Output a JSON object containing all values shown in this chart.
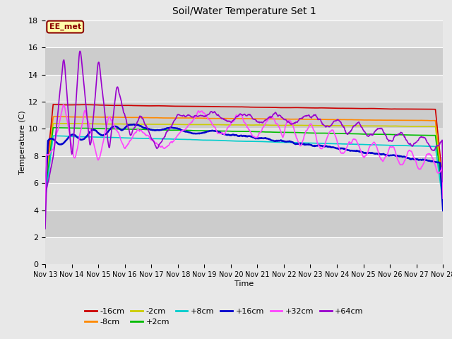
{
  "title": "Soil/Water Temperature Set 1",
  "xlabel": "Time",
  "ylabel": "Temperature (C)",
  "xlim": [
    0,
    15
  ],
  "ylim": [
    0,
    18
  ],
  "yticks": [
    0,
    2,
    4,
    6,
    8,
    10,
    12,
    14,
    16,
    18
  ],
  "xtick_labels": [
    "Nov 13",
    "Nov 14",
    "Nov 15",
    "Nov 16",
    "Nov 17",
    "Nov 18",
    "Nov 19",
    "Nov 20",
    "Nov 21",
    "Nov 22",
    "Nov 23",
    "Nov 24",
    "Nov 25",
    "Nov 26",
    "Nov 27",
    "Nov 28"
  ],
  "annotation": "EE_met",
  "fig_bg": "#e8e8e8",
  "plot_bg_light": "#e0e0e0",
  "plot_bg_dark": "#cccccc",
  "series": {
    "-16cm": {
      "color": "#cc0000",
      "lw": 1.2
    },
    "-8cm": {
      "color": "#ff8800",
      "lw": 1.2
    },
    "-2cm": {
      "color": "#cccc00",
      "lw": 1.2
    },
    "+2cm": {
      "color": "#00bb00",
      "lw": 1.2
    },
    "+8cm": {
      "color": "#00cccc",
      "lw": 1.2
    },
    "+16cm": {
      "color": "#0000cc",
      "lw": 1.8
    },
    "+32cm": {
      "color": "#ff44ff",
      "lw": 1.2
    },
    "+64cm": {
      "color": "#9900cc",
      "lw": 1.2
    }
  },
  "legend_order": [
    "-16cm",
    "-8cm",
    "-2cm",
    "+2cm",
    "+8cm",
    "+16cm",
    "+32cm",
    "+64cm"
  ]
}
